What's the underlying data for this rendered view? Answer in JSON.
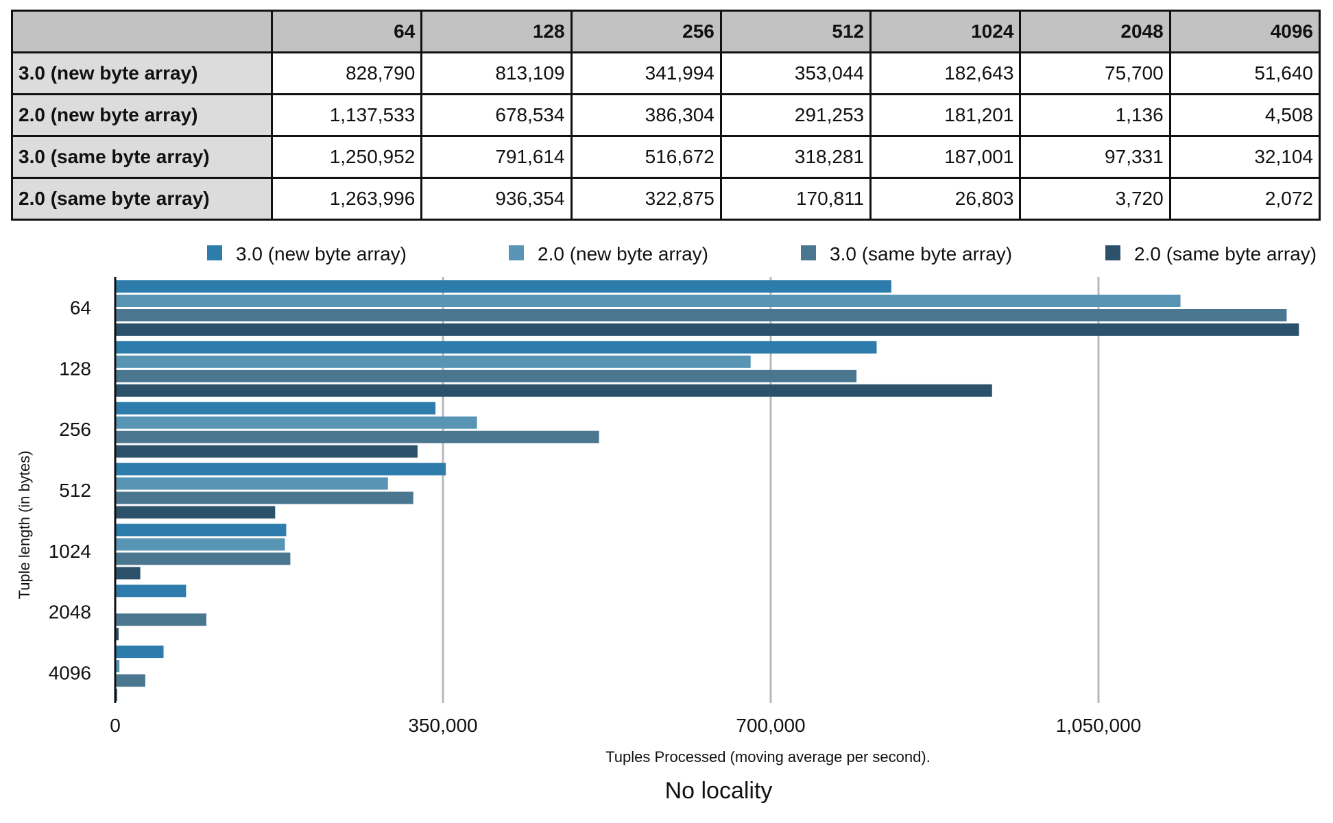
{
  "table": {
    "corner": "",
    "columns": [
      "64",
      "128",
      "256",
      "512",
      "1024",
      "2048",
      "4096"
    ],
    "rows": [
      {
        "label": "3.0 (new  byte array)",
        "values": [
          "828,790",
          "813,109",
          "341,994",
          "353,044",
          "182,643",
          "75,700",
          "51,640"
        ]
      },
      {
        "label": "2.0 (new byte array)",
        "values": [
          "1,137,533",
          "678,534",
          "386,304",
          "291,253",
          "181,201",
          "1,136",
          "4,508"
        ]
      },
      {
        "label": "3.0 (same byte array)",
        "values": [
          "1,250,952",
          "791,614",
          "516,672",
          "318,281",
          "187,001",
          "97,331",
          "32,104"
        ]
      },
      {
        "label": "2.0 (same byte array)",
        "values": [
          "1,263,996",
          "936,354",
          "322,875",
          "170,811",
          "26,803",
          "3,720",
          "2,072"
        ]
      }
    ]
  },
  "chart_data": {
    "type": "bar",
    "orientation": "horizontal",
    "title": "No locality",
    "xlabel": "Tuples Processed (moving average per second).",
    "ylabel": "Tuple length (in bytes)",
    "categories": [
      "64",
      "128",
      "256",
      "512",
      "1024",
      "2048",
      "4096"
    ],
    "xlim": [
      0,
      1263996
    ],
    "xticks": [
      0,
      350000,
      700000,
      1050000
    ],
    "xtick_labels": [
      "0",
      "350,000",
      "700,000",
      "1,050,000"
    ],
    "grid": "vertical",
    "legend_position": "top",
    "series": [
      {
        "name": "3.0 (new  byte array)",
        "color": "#2e7cab",
        "values": [
          828790,
          813109,
          341994,
          353044,
          182643,
          75700,
          51640
        ]
      },
      {
        "name": "2.0 (new byte array)",
        "color": "#5895b5",
        "values": [
          1137533,
          678534,
          386304,
          291253,
          181201,
          1136,
          4508
        ]
      },
      {
        "name": "3.0 (same byte array)",
        "color": "#4b7690",
        "values": [
          1250952,
          791614,
          516672,
          318281,
          187001,
          97331,
          32104
        ]
      },
      {
        "name": "2.0 (same byte array)",
        "color": "#2c516b",
        "values": [
          1263996,
          936354,
          322875,
          170811,
          26803,
          3720,
          2072
        ]
      }
    ]
  }
}
